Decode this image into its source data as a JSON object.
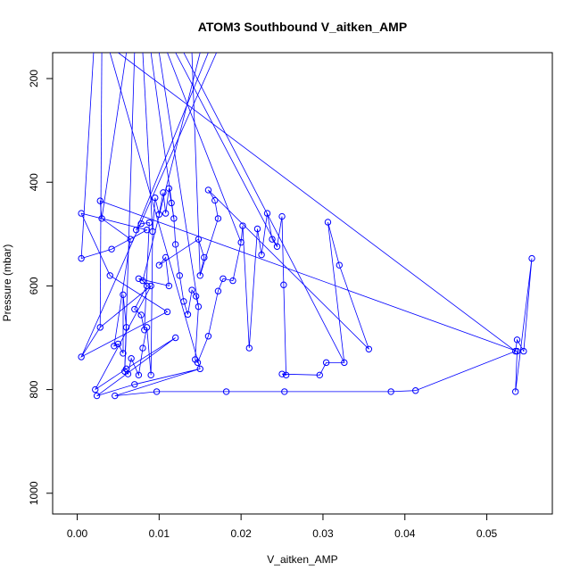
{
  "chart_data": {
    "type": "line",
    "title": "ATOM3 Southbound V_aitken_AMP",
    "xlabel": "V_aitken_AMP",
    "ylabel": "Pressure (mbar)",
    "xlim": [
      -0.003,
      0.058
    ],
    "ylim": [
      1040,
      150
    ],
    "y_reversed": true,
    "x_ticks": [
      0.0,
      0.01,
      0.02,
      0.03,
      0.04,
      0.05
    ],
    "x_tick_labels": [
      "0.00",
      "0.01",
      "0.02",
      "0.03",
      "0.04",
      "0.05"
    ],
    "y_ticks": [
      200,
      400,
      600,
      800,
      1000
    ],
    "y_tick_labels": [
      "200",
      "400",
      "600",
      "800",
      "1000"
    ],
    "grid": false,
    "series_color": "#0000ff",
    "series": [
      {
        "marker": "open-circle",
        "points": [
          [
            0.0005,
            547
          ],
          [
            0.0042,
            529
          ],
          [
            0.0085,
            492
          ],
          [
            0.0005,
            460
          ],
          [
            0.004,
            580
          ],
          [
            0.011,
            650
          ],
          [
            0.0005,
            737
          ],
          [
            0.0028,
            680
          ],
          [
            0.009,
            600
          ],
          [
            0.0022,
            800
          ],
          [
            0.006,
            760
          ],
          [
            0.012,
            700
          ],
          [
            0.0024,
            812
          ],
          [
            0.007,
            790
          ],
          [
            0.015,
            760
          ],
          [
            0.0046,
            812
          ],
          [
            0.0097,
            804
          ],
          [
            0.0182,
            804
          ],
          [
            0.0253,
            804
          ],
          [
            0.0383,
            804
          ],
          [
            0.0413,
            802
          ],
          [
            0.0535,
            726
          ],
          [
            0.0537,
            704
          ],
          [
            0.0545,
            726
          ],
          [
            0.0555,
            547
          ],
          [
            0.0535,
            804
          ],
          [
            0.0537,
            726
          ],
          [
            0.0028,
            436
          ],
          [
            0.003,
            470
          ],
          [
            0.0065,
            510
          ],
          [
            0.0045,
            716
          ],
          [
            0.005,
            712
          ],
          [
            0.0056,
            730
          ],
          [
            0.0056,
            617
          ],
          [
            0.006,
            680
          ],
          [
            0.0058,
            765
          ],
          [
            0.0062,
            770
          ],
          [
            0.0066,
            740
          ],
          [
            0.0075,
            772
          ],
          [
            0.008,
            720
          ],
          [
            0.0085,
            680
          ],
          [
            0.009,
            772
          ],
          [
            0.0092,
            495
          ],
          [
            0.0095,
            430
          ],
          [
            0.01,
            462
          ],
          [
            0.0105,
            420
          ],
          [
            0.0108,
            460
          ],
          [
            0.0112,
            412
          ],
          [
            0.0115,
            440
          ],
          [
            0.0118,
            470
          ],
          [
            0.012,
            520
          ],
          [
            0.0125,
            580
          ],
          [
            0.013,
            630
          ],
          [
            0.0135,
            655
          ],
          [
            0.014,
            608
          ],
          [
            0.0145,
            620
          ],
          [
            0.0148,
            640
          ],
          [
            0.0144,
            742
          ],
          [
            0.0147,
            748
          ],
          [
            0.016,
            697
          ],
          [
            0.0172,
            610
          ],
          [
            0.0178,
            586
          ],
          [
            0.019,
            590
          ],
          [
            0.02,
            516
          ],
          [
            0.0202,
            484
          ],
          [
            0.021,
            720
          ],
          [
            0.022,
            490
          ],
          [
            0.0225,
            540
          ],
          [
            0.0232,
            460
          ],
          [
            0.0238,
            510
          ],
          [
            0.0244,
            524
          ],
          [
            0.025,
            466
          ],
          [
            0.0252,
            598
          ],
          [
            0.0255,
            772
          ],
          [
            0.025,
            770
          ],
          [
            0.0296,
            772
          ],
          [
            0.0304,
            748
          ],
          [
            0.0326,
            748
          ],
          [
            0.0306,
            477
          ],
          [
            0.032,
            560
          ],
          [
            0.0356,
            722
          ],
          [
            0.016,
            415
          ],
          [
            0.0168,
            435
          ],
          [
            0.0172,
            470
          ],
          [
            0.015,
            580
          ],
          [
            0.0155,
            545
          ],
          [
            0.0148,
            510
          ],
          [
            0.01,
            560
          ],
          [
            0.0108,
            545
          ],
          [
            0.0112,
            600
          ],
          [
            0.0075,
            586
          ],
          [
            0.008,
            590
          ],
          [
            0.0085,
            600
          ],
          [
            0.007,
            645
          ],
          [
            0.0078,
            656
          ],
          [
            0.0082,
            685
          ],
          [
            0.0088,
            478
          ],
          [
            0.0078,
            480
          ],
          [
            0.0072,
            492
          ]
        ]
      }
    ],
    "top_lines_note_x": [
      0.002,
      0.003,
      0.004,
      0.005,
      0.006,
      0.007,
      0.008,
      0.009,
      0.01,
      0.011,
      0.012,
      0.013,
      0.014,
      0.015,
      0.016,
      0.017
    ]
  }
}
